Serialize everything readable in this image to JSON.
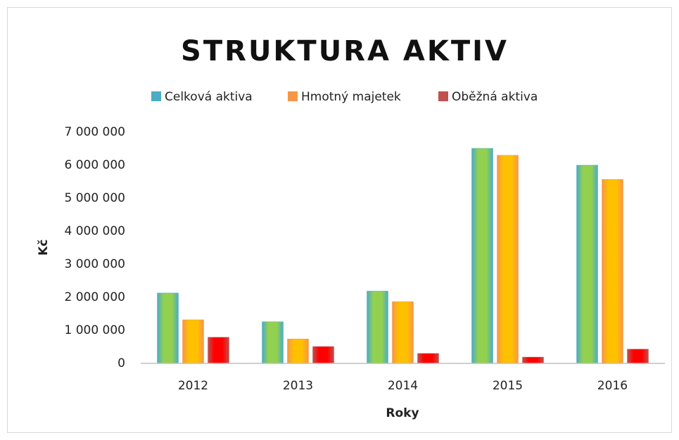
{
  "chart_data": {
    "type": "bar",
    "title": "STRUKTURA AKTIV",
    "x_label": "Roky",
    "y_label": "Kč",
    "categories": [
      "2012",
      "2013",
      "2014",
      "2015",
      "2016"
    ],
    "series": [
      {
        "name": "Celková aktiva",
        "color": "#4bacc6",
        "values": [
          2130000,
          1260000,
          2190000,
          6510000,
          6000000
        ]
      },
      {
        "name": "Hmotný majetek",
        "color": "#f79646",
        "values": [
          1320000,
          740000,
          1870000,
          6300000,
          5570000
        ]
      },
      {
        "name": "Oběžná aktiva",
        "color": "#c0504d",
        "values": [
          790000,
          510000,
          300000,
          190000,
          430000
        ]
      }
    ],
    "ylim": [
      0,
      7000000
    ],
    "yticks": [
      0,
      {
        "value": 1000000,
        "label": "1 000 000"
      },
      {
        "value": 2000000,
        "label": "2 000 000"
      },
      {
        "value": 3000000,
        "label": "3 000 000"
      },
      {
        "value": 4000000,
        "label": "4 000 000"
      },
      {
        "value": 5000000,
        "label": "5 000 000"
      },
      {
        "value": 6000000,
        "label": "6 000 000"
      },
      {
        "value": 7000000,
        "label": "7 000 000"
      }
    ],
    "legend": "top",
    "grid": false
  }
}
